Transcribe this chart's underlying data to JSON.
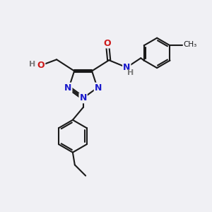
{
  "bg_color": "#f0f0f4",
  "bond_color": "#1a1a1a",
  "bond_width": 1.5,
  "atom_colors": {
    "N": "#1a1acc",
    "O": "#cc1a1a",
    "H": "#7a7a7a",
    "C": "#1a1a1a"
  },
  "font_size_atom": 9.5
}
